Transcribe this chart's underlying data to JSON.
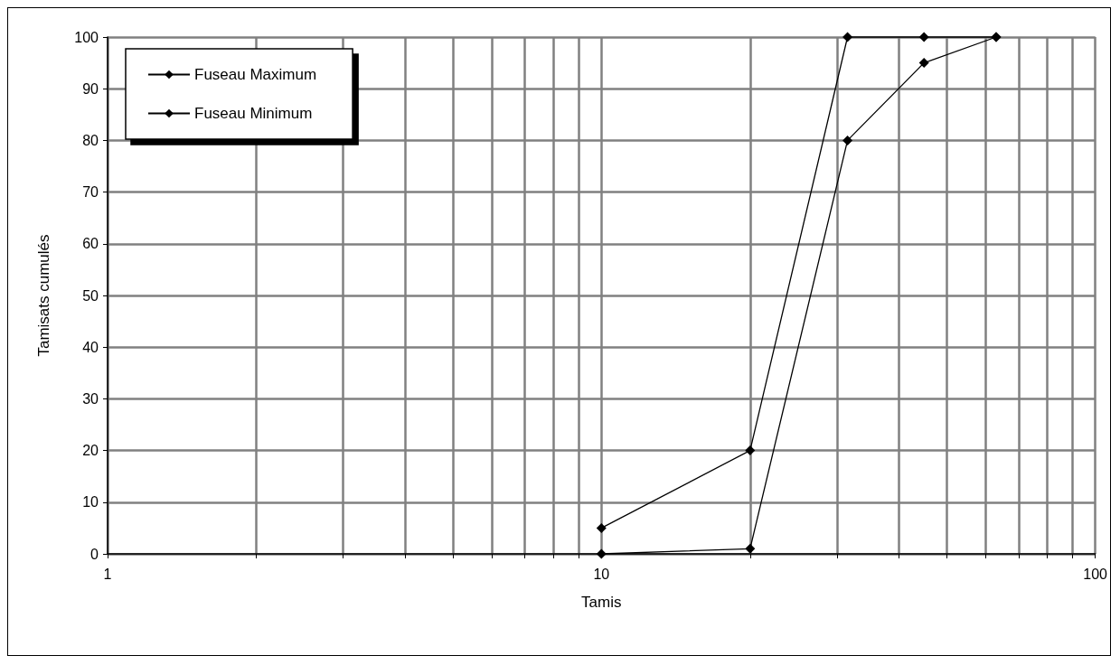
{
  "chart_data": {
    "type": "line",
    "xlabel": "Tamis",
    "ylabel": "Tamisats cumulés",
    "log": "x",
    "xlim": [
      1,
      100
    ],
    "ylim": [
      0,
      100
    ],
    "xticks": [
      1,
      {
        "value": 2,
        "label": null
      },
      {
        "value": 3,
        "label": null
      },
      {
        "value": 4,
        "label": null
      },
      {
        "value": 5,
        "label": null
      },
      {
        "value": 6,
        "label": null
      },
      {
        "value": 7,
        "label": null
      },
      {
        "value": 8,
        "label": null
      },
      {
        "value": 9,
        "label": null
      },
      10,
      {
        "value": 20,
        "label": null
      },
      {
        "value": 30,
        "label": null
      },
      {
        "value": 40,
        "label": null
      },
      {
        "value": 50,
        "label": null
      },
      {
        "value": 60,
        "label": null
      },
      {
        "value": 70,
        "label": null
      },
      {
        "value": 80,
        "label": null
      },
      {
        "value": 90,
        "label": null
      },
      100
    ],
    "yticks": [
      0,
      10,
      20,
      30,
      40,
      50,
      60,
      70,
      80,
      90,
      100
    ],
    "grid": true,
    "legend": "top left",
    "marker": "diamond",
    "line_style": "solid",
    "series": [
      {
        "name": "Fuseau Maximum",
        "color": "#000000",
        "x": [
          10,
          20,
          31.5,
          45,
          63
        ],
        "values": [
          5,
          20,
          100,
          100,
          100
        ]
      },
      {
        "name": "Fuseau Minimum",
        "color": "#000000",
        "x": [
          10,
          20,
          31.5,
          45,
          63
        ],
        "values": [
          0,
          1,
          80,
          95,
          100
        ]
      }
    ]
  }
}
